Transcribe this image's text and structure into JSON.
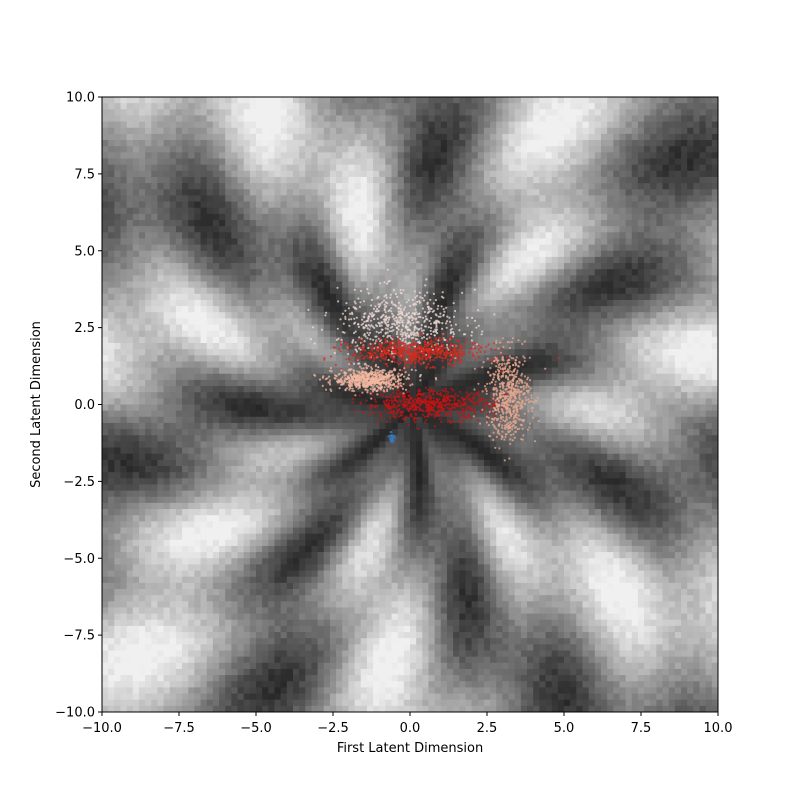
{
  "chart_data": {
    "type": "scatter",
    "title": "",
    "xlabel": "First Latent Dimension",
    "ylabel": "Second Latent Dimension",
    "xlim": [
      -10.0,
      10.0
    ],
    "ylim": [
      -10.0,
      10.0
    ],
    "x_ticks": [
      "−10.0",
      "−7.5",
      "−5.0",
      "−2.5",
      "0.0",
      "2.5",
      "5.0",
      "7.5",
      "10.0"
    ],
    "y_ticks": [
      "−10.0",
      "−7.5",
      "−5.0",
      "−2.5",
      "0.0",
      "2.5",
      "5.0",
      "7.5",
      "10.0"
    ],
    "x_tick_values": [
      -10,
      -7.5,
      -5,
      -2.5,
      0,
      2.5,
      5,
      7.5,
      10
    ],
    "y_tick_values": [
      -10,
      -7.5,
      -5,
      -2.5,
      0,
      2.5,
      5,
      7.5,
      10
    ],
    "grid": false,
    "legend": "none",
    "background": "grayscale latent-space decoded image map spanning the full axis range, dark central region around the origin",
    "point_clusters": [
      {
        "color": "#f0dcd6",
        "center": [
          -0.3,
          2.6
        ],
        "spread": [
          1.7,
          0.9
        ],
        "description": "pale pinkish-white diffuse cloud upper region"
      },
      {
        "color": "#d92a1c",
        "center": [
          0.2,
          1.7
        ],
        "spread": [
          1.8,
          0.35
        ],
        "description": "bright red band"
      },
      {
        "color": "#c41414",
        "center": [
          0.6,
          0.0
        ],
        "spread": [
          1.7,
          0.4
        ],
        "description": "dark red band lower"
      },
      {
        "color": "#f4b8a0",
        "center": [
          -1.3,
          0.8
        ],
        "spread": [
          1.0,
          0.3
        ],
        "description": "salmon streak"
      },
      {
        "color": "#e8a890",
        "center": [
          3.2,
          0.3
        ],
        "spread": [
          0.6,
          1.2
        ],
        "description": "light salmon arc on right"
      },
      {
        "color": "#3a78b8",
        "center": [
          -0.6,
          -1.1
        ],
        "spread": [
          0.08,
          0.15
        ],
        "description": "small blue cluster"
      }
    ]
  }
}
